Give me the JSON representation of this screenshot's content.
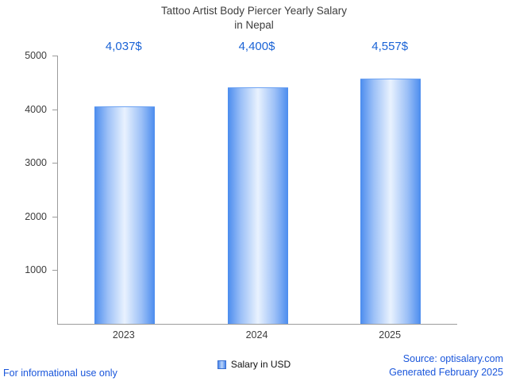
{
  "title": {
    "line1": "Tattoo Artist Body Piercer Yearly Salary",
    "line2": "in Nepal"
  },
  "chart_data": {
    "type": "bar",
    "title": "Tattoo Artist Body Piercer Yearly Salary in Nepal",
    "categories": [
      "2023",
      "2024",
      "2025"
    ],
    "values": [
      4037,
      4400,
      4557
    ],
    "value_labels": [
      "4,037$",
      "4,400$",
      "4,557$"
    ],
    "series_name": "Salary in USD",
    "xlabel": "",
    "ylabel": "",
    "ylim": [
      0,
      5000
    ],
    "yticks": [
      1000,
      2000,
      3000,
      4000,
      5000
    ],
    "grid": false,
    "legend_position": "bottom",
    "bar_color": "#4b8cee",
    "bar_highlight": "#e9f2fe",
    "label_color": "#1a63d6"
  },
  "legend": {
    "label": "Salary in USD"
  },
  "footer": {
    "disclaimer": "For informational use only",
    "source": "Source: optisalary.com",
    "generated": "Generated February 2025"
  },
  "colors": {
    "accent_blue": "#1a56db",
    "title_text": "#3d3d3d",
    "axis_line": "#9c9c9c"
  }
}
